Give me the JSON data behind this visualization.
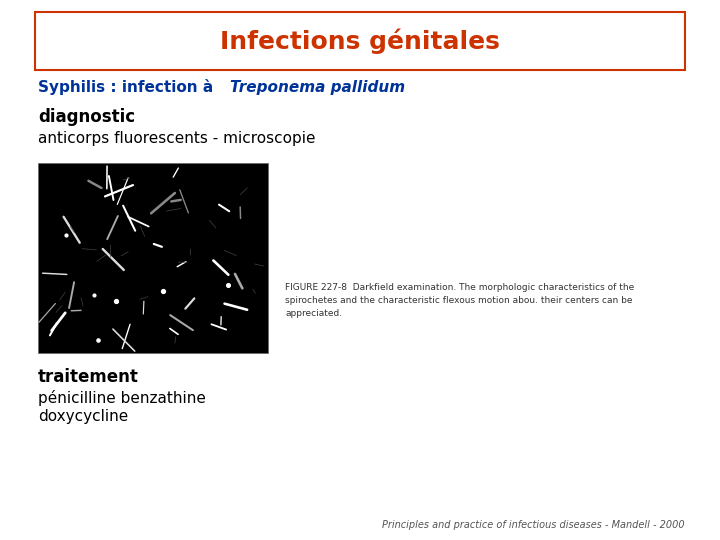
{
  "bg_color": "#ffffff",
  "title": "Infections génitales",
  "title_color": "#cc3300",
  "title_box_color": "#cc3300",
  "subtitle_plain": "Syphilis : infection à ",
  "subtitle_italic": "Treponema pallidum",
  "subtitle_color": "#003399",
  "diag_bold": "diagnostic",
  "diag_normal": "anticorps fluorescents - microscopie",
  "traitement_bold": "traitement",
  "traitement_normal1": "pénicilline benzathine",
  "traitement_normal2": "doxycycline",
  "figure_caption_line1": "FIGURE 227-8  Darkfield examination. The morphologic characteristics of the",
  "figure_caption_line2": "spirochetes and the characteristic flexous motion abou. their centers can be",
  "figure_caption_line3": "appreciated.",
  "footer": "Principles and practice of infectious diseases - Mandell - 2000",
  "text_color": "#000000",
  "footer_color": "#555555"
}
